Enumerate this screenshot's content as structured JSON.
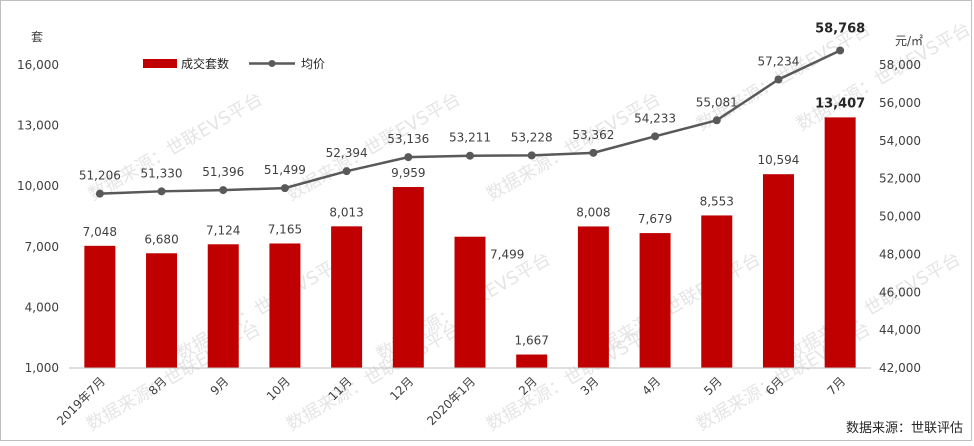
{
  "chart_data": {
    "type": "bar+line",
    "categories": [
      "2019年7月",
      "8月",
      "9月",
      "10月",
      "11月",
      "12月",
      "2020年1月",
      "2月",
      "3月",
      "4月",
      "5月",
      "6月",
      "7月"
    ],
    "series": [
      {
        "name": "成交套数",
        "type": "bar",
        "axis": "left",
        "color": "#c00000",
        "values": [
          7048,
          6680,
          7124,
          7165,
          8013,
          9959,
          7499,
          1667,
          8008,
          7679,
          8553,
          10594,
          13407
        ],
        "labels": [
          "7,048",
          "6,680",
          "7,124",
          "7,165",
          "8,013",
          "9,959",
          "7,499",
          "1,667",
          "8,008",
          "7,679",
          "8,553",
          "10,594",
          "13,407"
        ]
      },
      {
        "name": "均价",
        "type": "line",
        "axis": "right",
        "color": "#595959",
        "values": [
          51206,
          51330,
          51396,
          51499,
          52394,
          53136,
          53211,
          53228,
          53362,
          54233,
          55081,
          57234,
          58768
        ],
        "labels": [
          "51,206",
          "51,330",
          "51,396",
          "51,499",
          "52,394",
          "53,136",
          "53,211",
          "53,228",
          "53,362",
          "54,233",
          "55,081",
          "57,234",
          "58,768"
        ]
      }
    ],
    "y_left": {
      "unit": "套",
      "ylim": [
        1000,
        16000
      ],
      "ticks": [
        "1,000",
        "4,000",
        "7,000",
        "10,000",
        "13,000",
        "16,000"
      ]
    },
    "y_right": {
      "unit": "元/㎡",
      "ylim": [
        42000,
        58000
      ],
      "ticks": [
        "42,000",
        "44,000",
        "46,000",
        "48,000",
        "50,000",
        "52,000",
        "54,000",
        "56,000",
        "58,000"
      ]
    },
    "legend_position": "top-left",
    "source": "数据来源：世联评估",
    "watermark": "数据来源：世联EVS平台"
  }
}
